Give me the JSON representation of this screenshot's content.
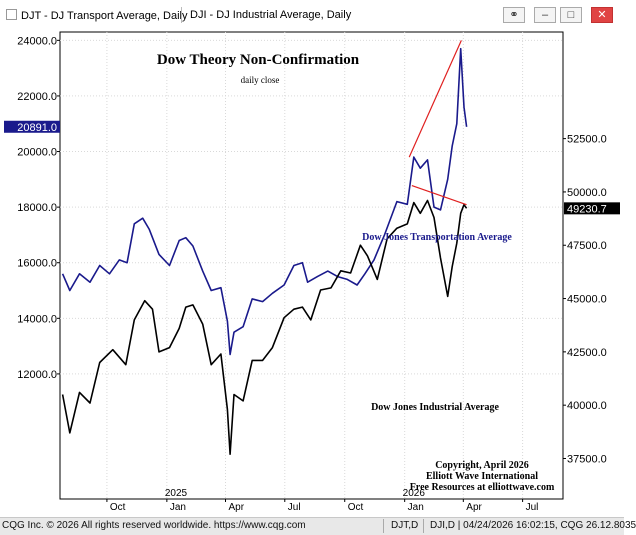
{
  "window": {
    "tab1_label": "DJT - DJ Transport Average, Daily",
    "tab2_label": "DJI - DJ Industrial Average, Daily"
  },
  "chart_data": {
    "type": "line",
    "title": "Dow Theory Non-Confirmation",
    "subtitle": "daily close",
    "copyright": [
      "Copyright, April 2026",
      "Elliott Wave International",
      "Free Resources at elliottwave.com"
    ],
    "x_ticks": [
      {
        "date": "2024-10-01",
        "label": "Oct"
      },
      {
        "date": "2025-01-01",
        "label": "Jan"
      },
      {
        "date": "2025-04-01",
        "label": "Apr"
      },
      {
        "date": "2025-07-01",
        "label": "Jul"
      },
      {
        "date": "2025-10-01",
        "label": "Oct"
      },
      {
        "date": "2026-01-01",
        "label": "Jan"
      },
      {
        "date": "2026-04-01",
        "label": "Apr"
      },
      {
        "date": "2026-07-01",
        "label": "Jul"
      }
    ],
    "year_labels": [
      {
        "date": "2025-01-15",
        "label": "2025"
      },
      {
        "date": "2026-01-15",
        "label": "2026"
      }
    ],
    "left_axis": {
      "ylim": [
        7500,
        24300
      ],
      "ticks": [
        {
          "value": 24000,
          "label": "24000.0"
        },
        {
          "value": 22000,
          "label": "22000.0"
        },
        {
          "value": 20000,
          "label": "20000.0"
        },
        {
          "value": 18000,
          "label": "18000.0"
        },
        {
          "value": 16000,
          "label": "16000.0"
        },
        {
          "value": 14000,
          "label": "14000.0"
        },
        {
          "value": 12000,
          "label": "12000.0"
        }
      ],
      "last_value_label": "20891.0",
      "last_value": 20891
    },
    "right_axis": {
      "ylim": [
        35600,
        57500
      ],
      "ticks": [
        {
          "value": 52500,
          "label": "52500.0"
        },
        {
          "value": 50000,
          "label": "50000.0"
        },
        {
          "value": 47500,
          "label": "47500.0"
        },
        {
          "value": 45000,
          "label": "45000.0"
        },
        {
          "value": 42500,
          "label": "42500.0"
        },
        {
          "value": 40000,
          "label": "40000.0"
        },
        {
          "value": 37500,
          "label": "37500.0"
        }
      ],
      "last_value_label": "49230.7",
      "last_value": 49230.7
    },
    "series": [
      {
        "name": "Dow Jones Transportation Average",
        "axis": "left",
        "color": "#1a1a8c",
        "points": [
          [
            "2024-07-25",
            15600
          ],
          [
            "2024-08-05",
            15000
          ],
          [
            "2024-08-20",
            15600
          ],
          [
            "2024-09-05",
            15300
          ],
          [
            "2024-09-20",
            15900
          ],
          [
            "2024-10-05",
            15600
          ],
          [
            "2024-10-20",
            16100
          ],
          [
            "2024-11-01",
            16000
          ],
          [
            "2024-11-12",
            17400
          ],
          [
            "2024-11-25",
            17600
          ],
          [
            "2024-12-05",
            17200
          ],
          [
            "2024-12-20",
            16300
          ],
          [
            "2025-01-05",
            15900
          ],
          [
            "2025-01-20",
            16800
          ],
          [
            "2025-01-30",
            16900
          ],
          [
            "2025-02-10",
            16600
          ],
          [
            "2025-02-25",
            15700
          ],
          [
            "2025-03-10",
            15000
          ],
          [
            "2025-03-25",
            15100
          ],
          [
            "2025-04-04",
            13900
          ],
          [
            "2025-04-08",
            12700
          ],
          [
            "2025-04-14",
            13500
          ],
          [
            "2025-04-28",
            13700
          ],
          [
            "2025-05-12",
            14700
          ],
          [
            "2025-05-28",
            14600
          ],
          [
            "2025-06-12",
            14900
          ],
          [
            "2025-06-30",
            15200
          ],
          [
            "2025-07-15",
            15900
          ],
          [
            "2025-07-28",
            16000
          ],
          [
            "2025-08-05",
            15300
          ],
          [
            "2025-08-20",
            15500
          ],
          [
            "2025-09-05",
            15700
          ],
          [
            "2025-09-20",
            15500
          ],
          [
            "2025-10-05",
            15400
          ],
          [
            "2025-10-20",
            15200
          ],
          [
            "2025-11-01",
            15600
          ],
          [
            "2025-11-15",
            16100
          ],
          [
            "2025-12-01",
            17000
          ],
          [
            "2025-12-20",
            18200
          ],
          [
            "2026-01-05",
            18100
          ],
          [
            "2026-01-15",
            19800
          ],
          [
            "2026-01-25",
            19400
          ],
          [
            "2026-02-05",
            19700
          ],
          [
            "2026-02-15",
            18000
          ],
          [
            "2026-02-25",
            17900
          ],
          [
            "2026-03-08",
            19000
          ],
          [
            "2026-03-15",
            20200
          ],
          [
            "2026-03-22",
            21000
          ],
          [
            "2026-03-28",
            23700
          ],
          [
            "2026-04-02",
            21600
          ],
          [
            "2026-04-06",
            20891
          ]
        ]
      },
      {
        "name": "Dow Jones Industrial Average",
        "axis": "right",
        "color": "#000000",
        "points": [
          [
            "2024-07-25",
            40500
          ],
          [
            "2024-08-05",
            38700
          ],
          [
            "2024-08-20",
            40600
          ],
          [
            "2024-09-05",
            40100
          ],
          [
            "2024-09-20",
            42000
          ],
          [
            "2024-10-10",
            42600
          ],
          [
            "2024-10-30",
            41900
          ],
          [
            "2024-11-12",
            44000
          ],
          [
            "2024-11-28",
            44900
          ],
          [
            "2024-12-10",
            44500
          ],
          [
            "2024-12-20",
            42500
          ],
          [
            "2025-01-05",
            42700
          ],
          [
            "2025-01-20",
            43600
          ],
          [
            "2025-01-30",
            44600
          ],
          [
            "2025-02-10",
            44700
          ],
          [
            "2025-02-25",
            43800
          ],
          [
            "2025-03-10",
            41900
          ],
          [
            "2025-03-25",
            42400
          ],
          [
            "2025-04-04",
            39800
          ],
          [
            "2025-04-08",
            37700
          ],
          [
            "2025-04-14",
            40500
          ],
          [
            "2025-04-28",
            40200
          ],
          [
            "2025-05-12",
            42100
          ],
          [
            "2025-05-28",
            42100
          ],
          [
            "2025-06-12",
            42700
          ],
          [
            "2025-06-30",
            44100
          ],
          [
            "2025-07-15",
            44500
          ],
          [
            "2025-07-28",
            44600
          ],
          [
            "2025-08-10",
            44000
          ],
          [
            "2025-08-25",
            45400
          ],
          [
            "2025-09-10",
            45500
          ],
          [
            "2025-09-25",
            46300
          ],
          [
            "2025-10-10",
            46200
          ],
          [
            "2025-10-25",
            47500
          ],
          [
            "2025-11-05",
            47000
          ],
          [
            "2025-11-20",
            45900
          ],
          [
            "2025-12-05",
            47800
          ],
          [
            "2025-12-20",
            48300
          ],
          [
            "2026-01-05",
            48500
          ],
          [
            "2026-01-15",
            49500
          ],
          [
            "2026-01-25",
            49000
          ],
          [
            "2026-02-05",
            49600
          ],
          [
            "2026-02-15",
            48800
          ],
          [
            "2026-02-25",
            46900
          ],
          [
            "2026-03-08",
            45100
          ],
          [
            "2026-03-15",
            46500
          ],
          [
            "2026-03-22",
            47600
          ],
          [
            "2026-03-28",
            49000
          ],
          [
            "2026-04-02",
            49400
          ],
          [
            "2026-04-06",
            49230.7
          ]
        ]
      }
    ],
    "trendlines": [
      {
        "axis": "left",
        "from": [
          "2026-01-08",
          19800
        ],
        "to": [
          "2026-03-29",
          24000
        ],
        "color": "#e02020"
      },
      {
        "axis": "right",
        "from": [
          "2026-01-12",
          50300
        ],
        "to": [
          "2026-04-06",
          49400
        ],
        "color": "#e02020"
      }
    ],
    "grid": true,
    "legend": "series labels inside plot"
  },
  "status": {
    "left": "CQG Inc. © 2026 All rights reserved worldwide. https://www.cqg.com",
    "mid": "DJT,D",
    "right": "DJI,D | 04/24/2026 16:02:15, CQG 26.12.8035"
  }
}
